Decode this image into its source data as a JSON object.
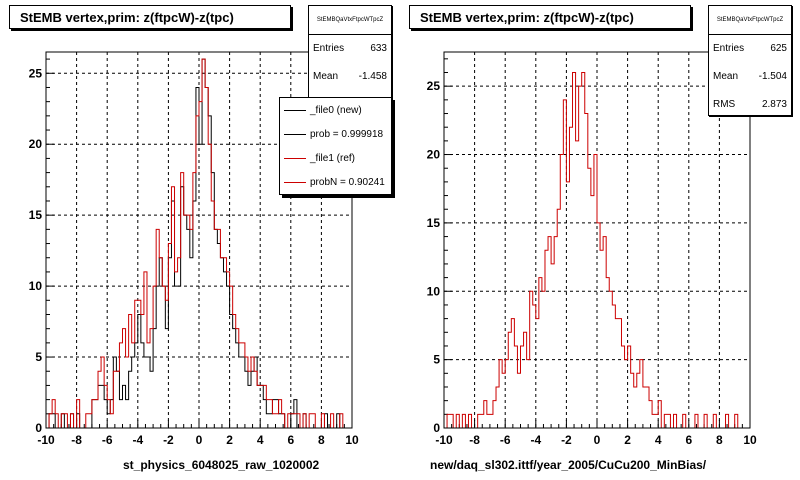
{
  "panels": [
    {
      "title": "StEMB  vertex,prim: z(ftpcW)-z(tpc)",
      "stats": {
        "name": "StEMBQaVtxFtpcWTpcZ",
        "rows": [
          {
            "label": "Entries",
            "value": "633"
          },
          {
            "label": "Mean",
            "value": "-1.458"
          }
        ]
      },
      "legend": [
        {
          "label": "_file0 (new)",
          "color": "#000000"
        },
        {
          "label": "prob = 0.999918",
          "color": "#000000"
        },
        {
          "label": "_file1 (ref)",
          "color": "#cc0000"
        },
        {
          "label": "probN = 0.90241",
          "color": "#cc0000"
        }
      ],
      "xaxis_title": "st_physics_6048025_raw_1020002"
    },
    {
      "title": "StEMB  vertex,prim: z(ftpcW)-z(tpc)",
      "stats": {
        "name": "StEMBQaVtxFtpcWTpcZ",
        "rows": [
          {
            "label": "Entries",
            "value": "625"
          },
          {
            "label": "Mean",
            "value": "-1.504"
          },
          {
            "label": "RMS",
            "value": "2.873"
          }
        ]
      },
      "legend": [],
      "xaxis_title": "new/daq_sl302.ittf/year_2005/CuCu200_MinBias/"
    }
  ],
  "chart_data": [
    {
      "type": "histogram",
      "xlim": [
        -10,
        10
      ],
      "ylim": [
        0,
        26.5
      ],
      "xticks": [
        -10,
        -8,
        -6,
        -4,
        -2,
        0,
        2,
        4,
        6,
        8,
        10
      ],
      "yticks": [
        0,
        5,
        10,
        15,
        20,
        25
      ],
      "grid": true,
      "bin_width": 0.2,
      "series": [
        {
          "name": "_file0 (new)",
          "color": "#000000",
          "values": [
            0,
            1,
            1,
            0,
            0,
            1,
            0,
            0,
            1,
            0,
            1,
            0,
            0,
            0,
            0,
            2,
            2,
            3,
            3,
            2,
            1,
            2,
            5,
            4,
            2,
            3,
            2,
            4,
            5,
            6,
            8,
            6,
            5,
            5,
            4,
            7,
            10,
            12,
            10,
            7,
            12,
            16,
            10,
            10,
            17,
            15,
            14,
            12,
            16,
            24,
            20,
            26,
            24,
            22,
            18,
            14,
            13,
            12,
            11,
            10,
            8,
            7,
            6,
            5,
            5,
            4,
            3,
            4,
            5,
            3,
            3,
            2,
            1,
            1,
            2,
            2,
            1,
            1,
            0,
            0,
            1,
            2,
            0,
            0,
            1,
            0,
            0,
            0,
            0,
            0,
            0,
            1,
            0,
            0,
            0,
            1,
            0,
            0,
            0,
            0
          ]
        },
        {
          "name": "_file1 (ref)",
          "color": "#cc0000",
          "values": [
            0,
            1,
            2,
            1,
            0,
            1,
            1,
            0,
            1,
            0,
            2,
            0,
            0,
            1,
            1,
            2,
            2,
            4,
            5,
            3,
            2,
            1,
            4,
            4,
            6,
            7,
            5,
            8,
            6,
            9,
            9,
            8,
            11,
            6,
            7,
            10,
            14,
            12,
            10,
            9,
            13,
            17,
            11,
            12,
            18,
            15,
            15,
            14,
            18,
            22,
            23,
            26,
            24,
            20,
            16,
            14,
            14,
            12,
            12,
            11,
            10,
            8,
            7,
            6,
            6,
            5,
            4,
            5,
            4,
            3,
            3,
            3,
            2,
            2,
            1,
            1,
            2,
            1,
            0,
            1,
            1,
            1,
            1,
            0,
            1,
            0,
            1,
            1,
            0,
            0,
            1,
            0,
            0,
            1,
            0,
            0,
            1,
            0,
            0,
            0
          ]
        }
      ]
    },
    {
      "type": "histogram",
      "xlim": [
        -10,
        10
      ],
      "ylim": [
        0,
        27.5
      ],
      "xticks": [
        -10,
        -8,
        -6,
        -4,
        -2,
        0,
        2,
        4,
        6,
        8,
        10
      ],
      "yticks": [
        0,
        5,
        10,
        15,
        20,
        25
      ],
      "grid": true,
      "bin_width": 0.2,
      "series": [
        {
          "name": "",
          "color": "#cc0000",
          "values": [
            0,
            1,
            1,
            0,
            1,
            0,
            1,
            0,
            1,
            0,
            0,
            1,
            1,
            2,
            1,
            1,
            2,
            3,
            5,
            4,
            5,
            7,
            8,
            6,
            4,
            6,
            7,
            5,
            10,
            9,
            8,
            11,
            10,
            13,
            14,
            12,
            14,
            16,
            20,
            24,
            18,
            22,
            26,
            21,
            25,
            26,
            23,
            19,
            17,
            20,
            15,
            13,
            14,
            11,
            10,
            9,
            8,
            8,
            6,
            5,
            6,
            4,
            3,
            4,
            5,
            3,
            3,
            2,
            1,
            1,
            2,
            0,
            1,
            1,
            0,
            1,
            0,
            0,
            1,
            0,
            0,
            0,
            1,
            0,
            0,
            1,
            0,
            0,
            1,
            0,
            0,
            0,
            1,
            0,
            0,
            1,
            0,
            0,
            0,
            0
          ]
        }
      ]
    }
  ]
}
